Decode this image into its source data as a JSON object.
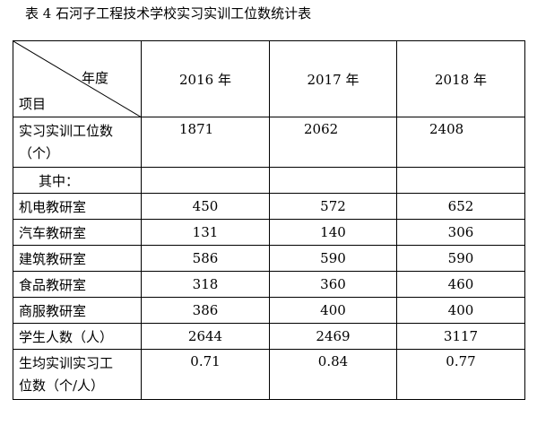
{
  "caption": "表 4  石河子工程技术学校实习实训工位数统计表",
  "header": {
    "corner_top": "年度",
    "corner_bottom": "项目",
    "years": [
      "2016 年",
      "2017 年",
      "2018 年"
    ]
  },
  "rows": {
    "workstations": {
      "label_line1": "实习实训工位数",
      "label_line2": "（个）",
      "values": [
        "1871",
        "2062",
        "2408"
      ]
    },
    "of_which": {
      "label": "其中："
    },
    "departments": [
      {
        "label": "机电教研室",
        "values": [
          "450",
          "572",
          "652"
        ]
      },
      {
        "label": "汽车教研室",
        "values": [
          "131",
          "140",
          "306"
        ]
      },
      {
        "label": "建筑教研室",
        "values": [
          "586",
          "590",
          "590"
        ]
      },
      {
        "label": "食品教研室",
        "values": [
          "318",
          "360",
          "460"
        ]
      },
      {
        "label": "商服教研室",
        "values": [
          "386",
          "400",
          "400"
        ]
      }
    ],
    "students": {
      "label": "学生人数（人）",
      "values": [
        "2644",
        "2469",
        "3117"
      ]
    },
    "per_student": {
      "label_line1": "生均实训实习工",
      "label_line2": "位数（个/人）",
      "values": [
        "0.71",
        "0.84",
        "0.77"
      ]
    }
  }
}
